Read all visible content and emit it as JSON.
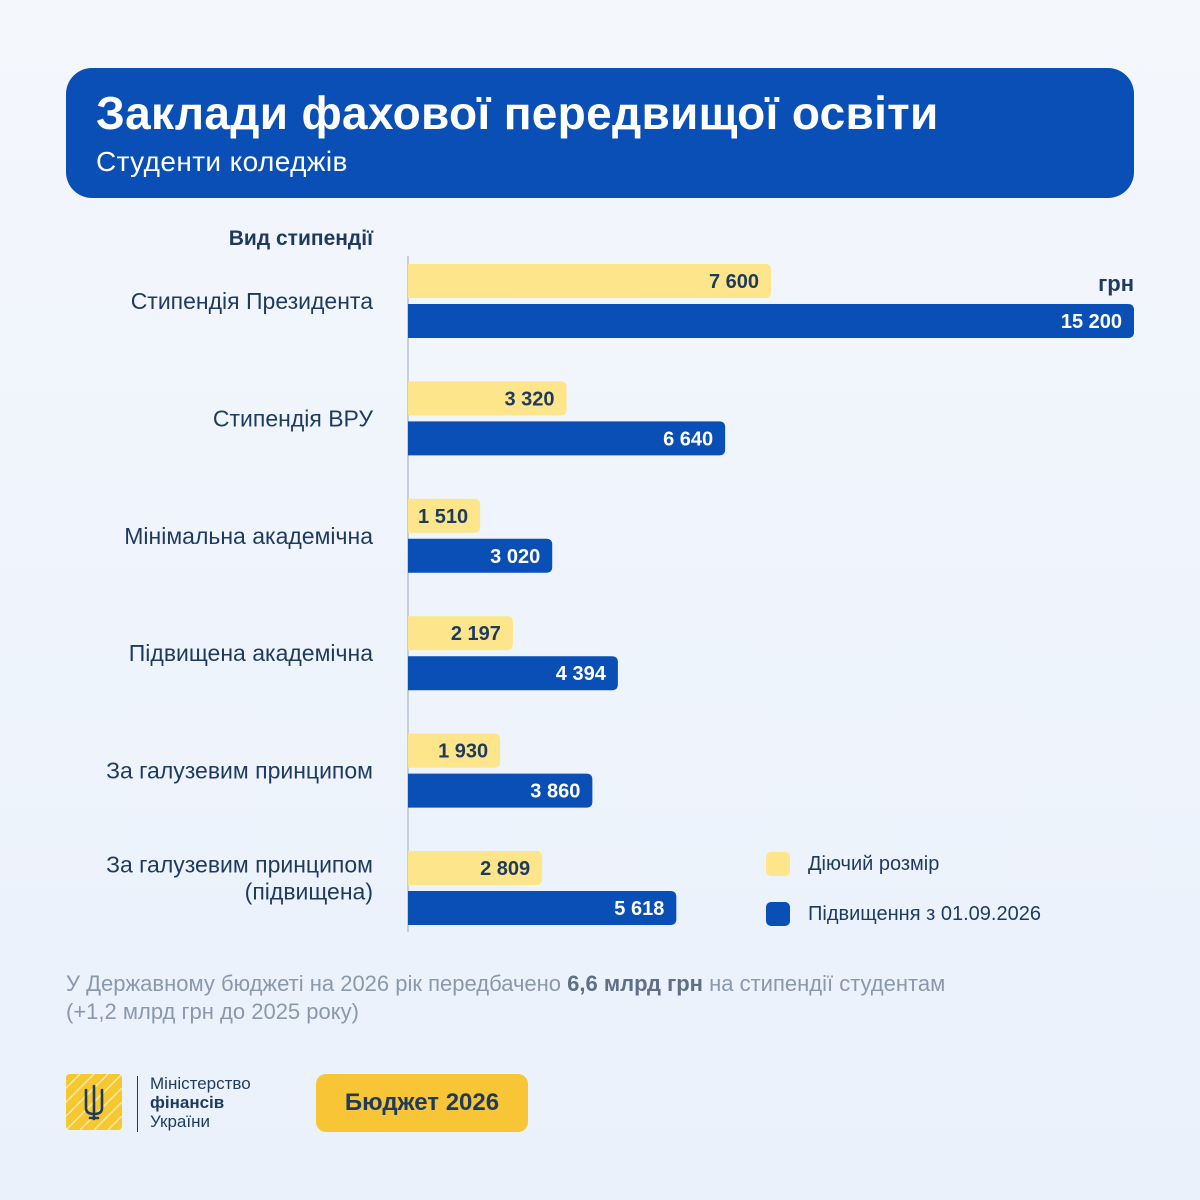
{
  "header": {
    "title": "Заклади фахової передвищої освіти",
    "subtitle": "Студенти коледжів"
  },
  "chart_data": {
    "type": "bar",
    "orientation": "horizontal",
    "category_heading": "Вид стипендії",
    "unit": "грн",
    "categories": [
      [
        "Стипендія Президента"
      ],
      [
        "Стипендія ВРУ"
      ],
      [
        "Мінімальна академічна"
      ],
      [
        "Підвищена академічна"
      ],
      [
        "За галузевим принципом"
      ],
      [
        "За галузевим принципом",
        "(підвищена)"
      ]
    ],
    "series": [
      {
        "name": "Діючий розмір",
        "color": "#fce58a",
        "values": [
          7600,
          3320,
          1510,
          2197,
          1930,
          2809
        ],
        "labels": [
          "7 600",
          "3 320",
          "1 510",
          "2 197",
          "1 930",
          "2 809"
        ]
      },
      {
        "name": "Підвищення з 01.09.2026",
        "color": "#0a4fb5",
        "values": [
          15200,
          6640,
          3020,
          4394,
          3860,
          5618
        ],
        "labels": [
          "15 200",
          "6 640",
          "3 020",
          "4 394",
          "3 860",
          "5 618"
        ]
      }
    ],
    "xlim": [
      0,
      15200
    ],
    "grid": false,
    "legend_position": "bottom-right"
  },
  "note": {
    "text_before": "У Державному бюджеті на 2026 рік передбачено ",
    "highlight": "6,6 млрд грн",
    "text_after": " на стипендії студентам",
    "line2": "(+1,2 млрд грн до 2025 року)"
  },
  "footer": {
    "ministry_line1": "Міністерство",
    "ministry_line2": "фінансів",
    "ministry_line3": "України",
    "budget_label": "Бюджет 2026"
  },
  "icons": {
    "logo": "trident-icon"
  }
}
